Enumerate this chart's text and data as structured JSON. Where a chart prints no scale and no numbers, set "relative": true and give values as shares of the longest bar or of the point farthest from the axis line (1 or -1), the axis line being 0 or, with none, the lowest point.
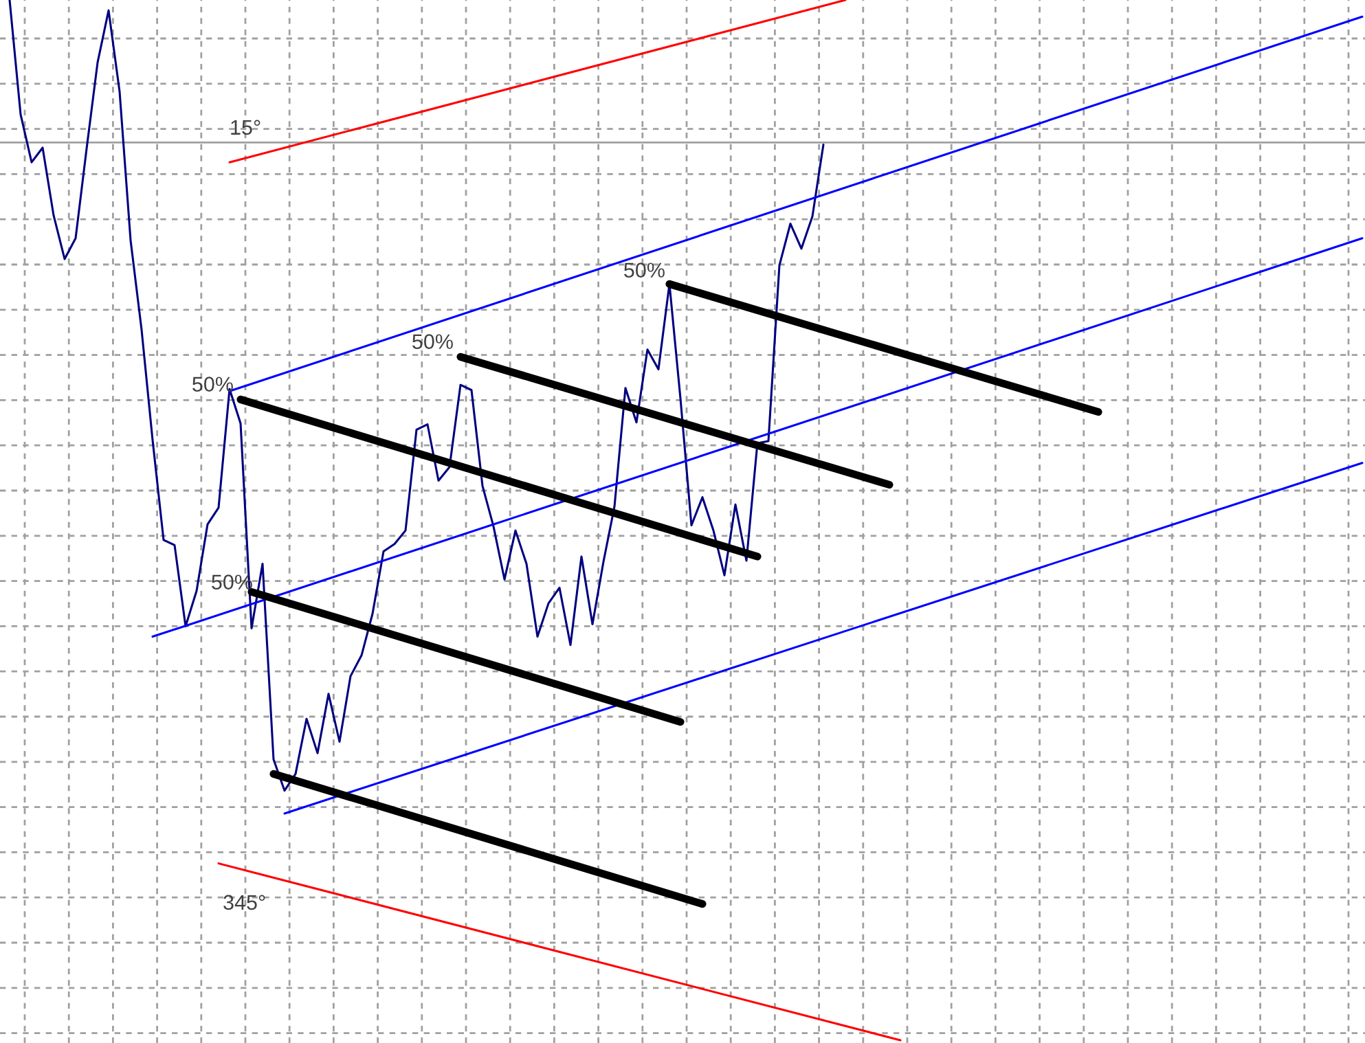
{
  "chart_data": {
    "type": "line",
    "relative": true,
    "grid": true,
    "marker": "none",
    "line_style": "solid",
    "categories": [
      null,
      null,
      null,
      null,
      null,
      null,
      null,
      null,
      null,
      null,
      null,
      null,
      null,
      null,
      null,
      null,
      null,
      null,
      null,
      null,
      null,
      null,
      null,
      null,
      null,
      null,
      null,
      null,
      null,
      null,
      null,
      null,
      null,
      null,
      null,
      null,
      null,
      null,
      null,
      null,
      null,
      null,
      null,
      null,
      null,
      null,
      null,
      null,
      null,
      null,
      null,
      null,
      null,
      null,
      null,
      null,
      null,
      null,
      null,
      null,
      null,
      null,
      null,
      null,
      null,
      null,
      null,
      null,
      null,
      null,
      null,
      null,
      null,
      null,
      null,
      null,
      null,
      null,
      null,
      null,
      null,
      null,
      null,
      null,
      null,
      null,
      null,
      null,
      null,
      null,
      null,
      null,
      null,
      null,
      null,
      null,
      null,
      null,
      null,
      null,
      null,
      null,
      null,
      null,
      null,
      null,
      null,
      null,
      null,
      null,
      null,
      null,
      null,
      null,
      null,
      null,
      null,
      null,
      null,
      null,
      null,
      null,
      null,
      null
    ],
    "series": [
      {
        "color": "#000080",
        "values": [
          1,
          0.89,
          0.844,
          0.858,
          0.793,
          0.751,
          0.771,
          0.857,
          0.94,
          0.99,
          0.912,
          0.769,
          0.683,
          0.577,
          0.481,
          0.476,
          0.398,
          0.432,
          0.496,
          0.512,
          0.626,
          0.593,
          0.396,
          0.458,
          0.27,
          0.24,
          0.256,
          0.309,
          0.276,
          0.333,
          0.287,
          0.35,
          0.37,
          0.41,
          0.47,
          0.477,
          0.49,
          0.587,
          0.592,
          0.538,
          0.551,
          0.63,
          0.625,
          0.533,
          0.494,
          0.443,
          0.49,
          0.458,
          0.388,
          0.42,
          0.435,
          0.38,
          0.465,
          0.4,
          0.46,
          0.513,
          0.627,
          0.594,
          0.664,
          0.645,
          0.727,
          0.617,
          0.495,
          0.522,
          0.49,
          0.447,
          0.515,
          0.461,
          0.574,
          0.576,
          0.745,
          0.785,
          0.761,
          0.792,
          0.861,
          null,
          null,
          null,
          null,
          null,
          null,
          null,
          null,
          null,
          null,
          null,
          null,
          null,
          null,
          null,
          null,
          null,
          null,
          null,
          null,
          null,
          null,
          null,
          null,
          null,
          null,
          null,
          null,
          null,
          null,
          null,
          null,
          null,
          null,
          null,
          null,
          null,
          null,
          null,
          null,
          null,
          null,
          null,
          null,
          null,
          null,
          null,
          null,
          null
        ]
      },
      {
        "color": "#0000ff",
        "values": [
          null,
          null,
          null,
          null,
          null,
          null,
          null,
          null,
          null,
          null,
          null,
          null,
          null,
          null,
          null,
          null,
          null,
          null,
          null,
          null,
          0.624,
          null,
          null,
          null,
          null,
          null,
          null,
          null,
          null,
          null,
          null,
          null,
          null,
          null,
          null,
          null,
          null,
          null,
          null,
          null,
          null,
          null,
          null,
          null,
          null,
          null,
          null,
          null,
          null,
          null,
          null,
          null,
          null,
          null,
          null,
          null,
          null,
          null,
          null,
          null,
          null,
          null,
          null,
          null,
          null,
          null,
          null,
          null,
          null,
          null,
          null,
          null,
          null,
          null,
          null,
          null,
          null,
          null,
          null,
          null,
          null,
          null,
          null,
          null,
          null,
          null,
          null,
          null,
          null,
          null,
          null,
          null,
          null,
          null,
          null,
          null,
          null,
          null,
          null,
          null,
          null,
          null,
          null,
          null,
          null,
          null,
          null,
          null,
          null,
          null,
          null,
          null,
          null,
          null,
          null,
          null,
          null,
          null,
          null,
          null,
          null,
          null,
          null,
          0.984
        ]
      },
      {
        "color": "#0000ff",
        "values": [
          null,
          null,
          null,
          null,
          null,
          null,
          null,
          null,
          null,
          null,
          null,
          null,
          null,
          0.388,
          null,
          null,
          null,
          null,
          null,
          null,
          null,
          null,
          null,
          null,
          null,
          null,
          null,
          null,
          null,
          null,
          null,
          null,
          null,
          null,
          null,
          null,
          null,
          null,
          null,
          null,
          null,
          null,
          null,
          null,
          null,
          null,
          null,
          null,
          null,
          null,
          null,
          null,
          null,
          null,
          null,
          null,
          null,
          null,
          null,
          null,
          null,
          null,
          null,
          null,
          null,
          null,
          null,
          null,
          null,
          null,
          null,
          null,
          null,
          null,
          null,
          null,
          null,
          null,
          null,
          null,
          null,
          null,
          null,
          null,
          null,
          null,
          null,
          null,
          null,
          null,
          null,
          null,
          null,
          null,
          null,
          null,
          null,
          null,
          null,
          null,
          null,
          null,
          null,
          null,
          null,
          null,
          null,
          null,
          null,
          null,
          null,
          null,
          null,
          null,
          null,
          null,
          null,
          null,
          null,
          null,
          null,
          null,
          null,
          0.771
        ]
      },
      {
        "color": "#0000ff",
        "values": [
          null,
          null,
          null,
          null,
          null,
          null,
          null,
          null,
          null,
          null,
          null,
          null,
          null,
          null,
          null,
          null,
          null,
          null,
          null,
          null,
          null,
          null,
          null,
          null,
          null,
          0.218,
          null,
          null,
          null,
          null,
          null,
          null,
          null,
          null,
          null,
          null,
          null,
          null,
          null,
          null,
          null,
          null,
          null,
          null,
          null,
          null,
          null,
          null,
          null,
          null,
          null,
          null,
          null,
          null,
          null,
          null,
          null,
          null,
          null,
          null,
          null,
          null,
          null,
          null,
          null,
          null,
          null,
          null,
          null,
          null,
          null,
          null,
          null,
          null,
          null,
          null,
          null,
          null,
          null,
          null,
          null,
          null,
          null,
          null,
          null,
          null,
          null,
          null,
          null,
          null,
          null,
          null,
          null,
          null,
          null,
          null,
          null,
          null,
          null,
          null,
          null,
          null,
          null,
          null,
          null,
          null,
          null,
          null,
          null,
          null,
          null,
          null,
          null,
          null,
          null,
          null,
          null,
          null,
          null,
          null,
          null,
          null,
          null,
          0.555
        ]
      },
      {
        "color": "#ff0000",
        "values": [
          null,
          null,
          null,
          null,
          null,
          null,
          null,
          null,
          null,
          null,
          null,
          null,
          null,
          null,
          null,
          null,
          null,
          null,
          null,
          null,
          0.844,
          null,
          null,
          null,
          null,
          null,
          null,
          null,
          null,
          null,
          null,
          null,
          null,
          null,
          null,
          null,
          null,
          null,
          null,
          null,
          null,
          null,
          null,
          null,
          null,
          null,
          null,
          null,
          null,
          null,
          null,
          null,
          null,
          null,
          null,
          null,
          null,
          null,
          null,
          null,
          null,
          null,
          null,
          null,
          null,
          null,
          null,
          null,
          null,
          null,
          null,
          null,
          null,
          null,
          null,
          null,
          1,
          null,
          null,
          null,
          null,
          null,
          null,
          null,
          null,
          null,
          null,
          null,
          null,
          null,
          null,
          null,
          null,
          null,
          null,
          null,
          null,
          null,
          null,
          null,
          null,
          null,
          null,
          null,
          null,
          null,
          null,
          null,
          null,
          null,
          null,
          null,
          null,
          null,
          null,
          null,
          null,
          null,
          null,
          null,
          null,
          null,
          null,
          null
        ]
      },
      {
        "color": "#ff0000",
        "values": [
          null,
          null,
          null,
          null,
          null,
          null,
          null,
          null,
          null,
          null,
          null,
          null,
          null,
          null,
          null,
          null,
          null,
          null,
          null,
          0.17,
          null,
          null,
          null,
          null,
          null,
          null,
          null,
          null,
          null,
          null,
          null,
          null,
          null,
          null,
          null,
          null,
          null,
          null,
          null,
          null,
          null,
          null,
          null,
          null,
          null,
          null,
          null,
          null,
          null,
          null,
          null,
          null,
          null,
          null,
          null,
          null,
          null,
          null,
          null,
          null,
          null,
          null,
          null,
          null,
          null,
          null,
          null,
          null,
          null,
          null,
          null,
          null,
          null,
          null,
          null,
          null,
          null,
          null,
          null,
          null,
          null,
          0,
          null,
          null,
          null,
          null,
          null,
          null,
          null,
          null,
          null,
          null,
          null,
          null,
          null,
          null,
          null,
          null,
          null,
          null,
          null,
          null,
          null,
          null,
          null,
          null,
          null,
          null,
          null,
          null,
          null,
          null,
          null,
          null,
          null,
          null,
          null,
          null,
          null,
          null,
          null,
          null,
          null,
          null
        ]
      },
      {
        "color": "#000000",
        "values": [
          null,
          null,
          null,
          null,
          null,
          null,
          null,
          null,
          null,
          null,
          null,
          null,
          null,
          null,
          null,
          null,
          null,
          null,
          null,
          null,
          null,
          0.616,
          null,
          null,
          null,
          null,
          null,
          null,
          null,
          null,
          null,
          null,
          null,
          null,
          null,
          null,
          null,
          null,
          null,
          null,
          null,
          null,
          null,
          null,
          null,
          null,
          null,
          null,
          null,
          null,
          null,
          null,
          null,
          null,
          null,
          null,
          null,
          null,
          null,
          null,
          null,
          null,
          null,
          null,
          null,
          null,
          null,
          null,
          0.465,
          null,
          null,
          null,
          null,
          null,
          null,
          null,
          null,
          null,
          null,
          null,
          null,
          null,
          null,
          null,
          null,
          null,
          null,
          null,
          null,
          null,
          null,
          null,
          null,
          null,
          null,
          null,
          null,
          null,
          null,
          null,
          null,
          null,
          null,
          null,
          null,
          null,
          null,
          null,
          null,
          null,
          null,
          null,
          null,
          null,
          null,
          null,
          null,
          null,
          null,
          null,
          null,
          null,
          null,
          null
        ]
      },
      {
        "color": "#000000",
        "values": [
          null,
          null,
          null,
          null,
          null,
          null,
          null,
          null,
          null,
          null,
          null,
          null,
          null,
          null,
          null,
          null,
          null,
          null,
          null,
          null,
          null,
          null,
          null,
          null,
          null,
          null,
          null,
          null,
          null,
          null,
          null,
          null,
          null,
          null,
          null,
          null,
          null,
          null,
          null,
          null,
          null,
          0.657,
          null,
          null,
          null,
          null,
          null,
          null,
          null,
          null,
          null,
          null,
          null,
          null,
          null,
          null,
          null,
          null,
          null,
          null,
          null,
          null,
          null,
          null,
          null,
          null,
          null,
          null,
          null,
          null,
          null,
          null,
          null,
          null,
          null,
          null,
          null,
          null,
          null,
          null,
          0.534,
          null,
          null,
          null,
          null,
          null,
          null,
          null,
          null,
          null,
          null,
          null,
          null,
          null,
          null,
          null,
          null,
          null,
          null,
          null,
          null,
          null,
          null,
          null,
          null,
          null,
          null,
          null,
          null,
          null,
          null,
          null,
          null,
          null,
          null,
          null,
          null,
          null,
          null,
          null,
          null,
          null,
          null,
          null
        ]
      },
      {
        "color": "#000000",
        "values": [
          null,
          null,
          null,
          null,
          null,
          null,
          null,
          null,
          null,
          null,
          null,
          null,
          null,
          null,
          null,
          null,
          null,
          null,
          null,
          null,
          null,
          null,
          null,
          null,
          null,
          null,
          null,
          null,
          null,
          null,
          null,
          null,
          null,
          null,
          null,
          null,
          null,
          null,
          null,
          null,
          null,
          null,
          null,
          null,
          null,
          null,
          null,
          null,
          null,
          null,
          null,
          null,
          null,
          null,
          null,
          null,
          null,
          null,
          null,
          null,
          0.727,
          null,
          null,
          null,
          null,
          null,
          null,
          null,
          null,
          null,
          null,
          null,
          null,
          null,
          null,
          null,
          null,
          null,
          null,
          null,
          null,
          null,
          null,
          null,
          null,
          null,
          null,
          null,
          null,
          null,
          null,
          null,
          null,
          null,
          null,
          null,
          null,
          null,
          null,
          0.604,
          null,
          null,
          null,
          null,
          null,
          null,
          null,
          null,
          null,
          null,
          null,
          null,
          null,
          null,
          null,
          null,
          null,
          null,
          null,
          null,
          null,
          null,
          null,
          null
        ]
      },
      {
        "color": "#000000",
        "values": [
          null,
          null,
          null,
          null,
          null,
          null,
          null,
          null,
          null,
          null,
          null,
          null,
          null,
          null,
          null,
          null,
          null,
          null,
          null,
          null,
          null,
          null,
          0.431,
          null,
          null,
          null,
          null,
          null,
          null,
          null,
          null,
          null,
          null,
          null,
          null,
          null,
          null,
          null,
          null,
          null,
          null,
          null,
          null,
          null,
          null,
          null,
          null,
          null,
          null,
          null,
          null,
          null,
          null,
          null,
          null,
          null,
          null,
          null,
          null,
          null,
          null,
          0.306,
          null,
          null,
          null,
          null,
          null,
          null,
          null,
          null,
          null,
          null,
          null,
          null,
          null,
          null,
          null,
          null,
          null,
          null,
          null,
          null,
          null,
          null,
          null,
          null,
          null,
          null,
          null,
          null,
          null,
          null,
          null,
          null,
          null,
          null,
          null,
          null,
          null,
          null,
          null,
          null,
          null,
          null,
          null,
          null,
          null,
          null,
          null,
          null,
          null,
          null,
          null,
          null,
          null,
          null,
          null,
          null,
          null,
          null,
          null,
          null,
          null,
          null
        ]
      },
      {
        "color": "#000000",
        "values": [
          null,
          null,
          null,
          null,
          null,
          null,
          null,
          null,
          null,
          null,
          null,
          null,
          null,
          null,
          null,
          null,
          null,
          null,
          null,
          null,
          null,
          null,
          null,
          null,
          0.256,
          null,
          null,
          null,
          null,
          null,
          null,
          null,
          null,
          null,
          null,
          null,
          null,
          null,
          null,
          null,
          null,
          null,
          null,
          null,
          null,
          null,
          null,
          null,
          null,
          null,
          null,
          null,
          null,
          null,
          null,
          null,
          null,
          null,
          null,
          null,
          null,
          null,
          null,
          0.131,
          null,
          null,
          null,
          null,
          null,
          null,
          null,
          null,
          null,
          null,
          null,
          null,
          null,
          null,
          null,
          null,
          null,
          null,
          null,
          null,
          null,
          null,
          null,
          null,
          null,
          null,
          null,
          null,
          null,
          null,
          null,
          null,
          null,
          null,
          null,
          null,
          null,
          null,
          null,
          null,
          null,
          null,
          null,
          null,
          null,
          null,
          null,
          null,
          null,
          null,
          null,
          null,
          null,
          null,
          null,
          null,
          null,
          null,
          null,
          null
        ]
      }
    ],
    "ref_lines": [
      {
        "axis": "y",
        "value": 0.863,
        "color": "#a0a0a0"
      }
    ],
    "annotations": [
      "15°",
      "345°",
      "50%",
      "50%",
      "50%",
      "50%"
    ]
  }
}
